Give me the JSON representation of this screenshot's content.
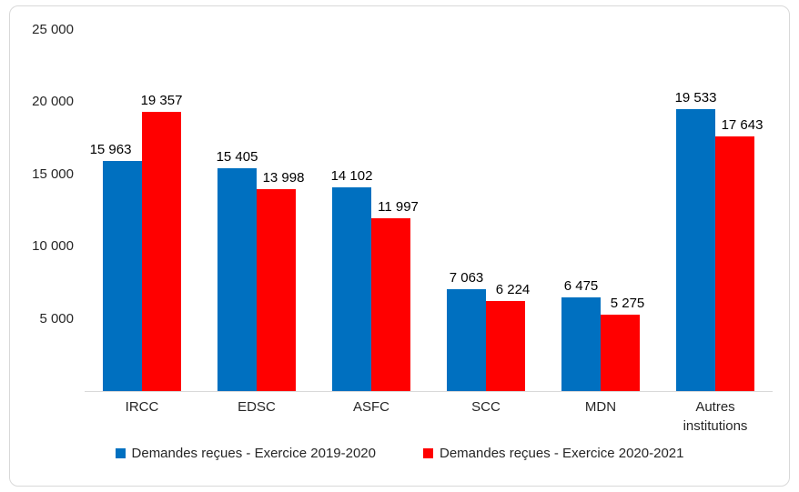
{
  "chart_data": {
    "type": "bar",
    "title": "",
    "categories": [
      "IRCC",
      "EDSC",
      "ASFC",
      "SCC",
      "MDN",
      "Autres institutions"
    ],
    "series": [
      {
        "name": "Demandes reçues - Exercice 2019-2020",
        "color": "#0070C0",
        "values": [
          15963,
          15405,
          14102,
          7063,
          6475,
          19533
        ],
        "value_labels": [
          "15 963",
          "15 405",
          "14 102",
          "7 063",
          "6 475",
          "19 533"
        ]
      },
      {
        "name": "Demandes reçues - Exercice 2020-2021",
        "color": "#FF0000",
        "values": [
          19357,
          13998,
          11997,
          6224,
          5275,
          17643
        ],
        "value_labels": [
          "19 357",
          "13 998",
          "11 997",
          "6 224",
          "5 275",
          "17 643"
        ]
      }
    ],
    "xlabel": "",
    "ylabel": "",
    "ylim": [
      0,
      25000
    ],
    "yticks": [
      {
        "value": 25000,
        "label": "25 000"
      },
      {
        "value": 20000,
        "label": "20 000"
      },
      {
        "value": 15000,
        "label": "15 000"
      },
      {
        "value": 10000,
        "label": "10 000"
      },
      {
        "value": 5000,
        "label": "5 000"
      }
    ],
    "grid": false,
    "legend_position": "bottom"
  },
  "colors": {
    "frame_border": "#D9D9D9",
    "axis_line": "#D9D9D9",
    "axis_text": "#262626",
    "data_label_text": "#000000"
  }
}
